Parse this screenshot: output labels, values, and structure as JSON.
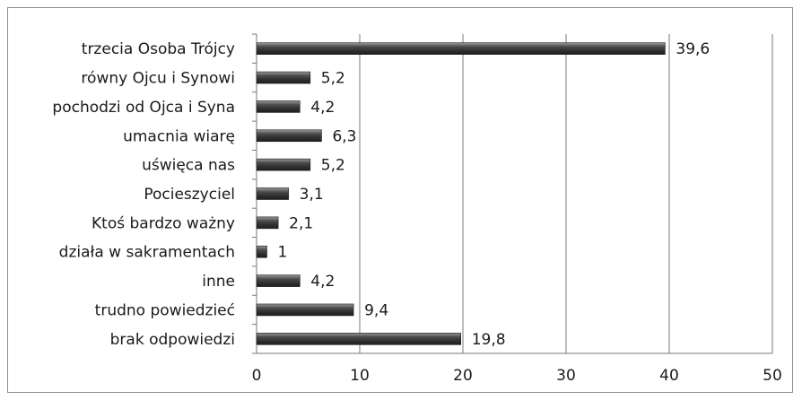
{
  "chart_data": {
    "type": "bar",
    "orientation": "horizontal",
    "title": "",
    "xlabel": "",
    "ylabel": "",
    "categories": [
      "trzecia Osoba Trójcy",
      "równy Ojcu i Synowi",
      "pochodzi od Ojca i Syna",
      "umacnia wiarę",
      "uświęca nas",
      "Pocieszyciel",
      "Ktoś bardzo ważny",
      "działa w sakramentach",
      "inne",
      "trudno powiedzieć",
      "brak odpowiedzi"
    ],
    "values": [
      39.6,
      5.2,
      4.2,
      6.3,
      5.2,
      3.1,
      2.1,
      1,
      4.2,
      9.4,
      19.8
    ],
    "value_labels": [
      "39,6",
      "5,2",
      "4,2",
      "6,3",
      "5,2",
      "3,1",
      "2,1",
      "1",
      "4,2",
      "9,4",
      "19,8"
    ],
    "xlim": [
      0,
      50
    ],
    "xticks": [
      0,
      10,
      20,
      30,
      40,
      50
    ],
    "xtick_labels": [
      "0",
      "10",
      "20",
      "30",
      "40",
      "50"
    ],
    "grid": "vertical",
    "legend": "none",
    "bar_color": "#3c3c3c"
  }
}
